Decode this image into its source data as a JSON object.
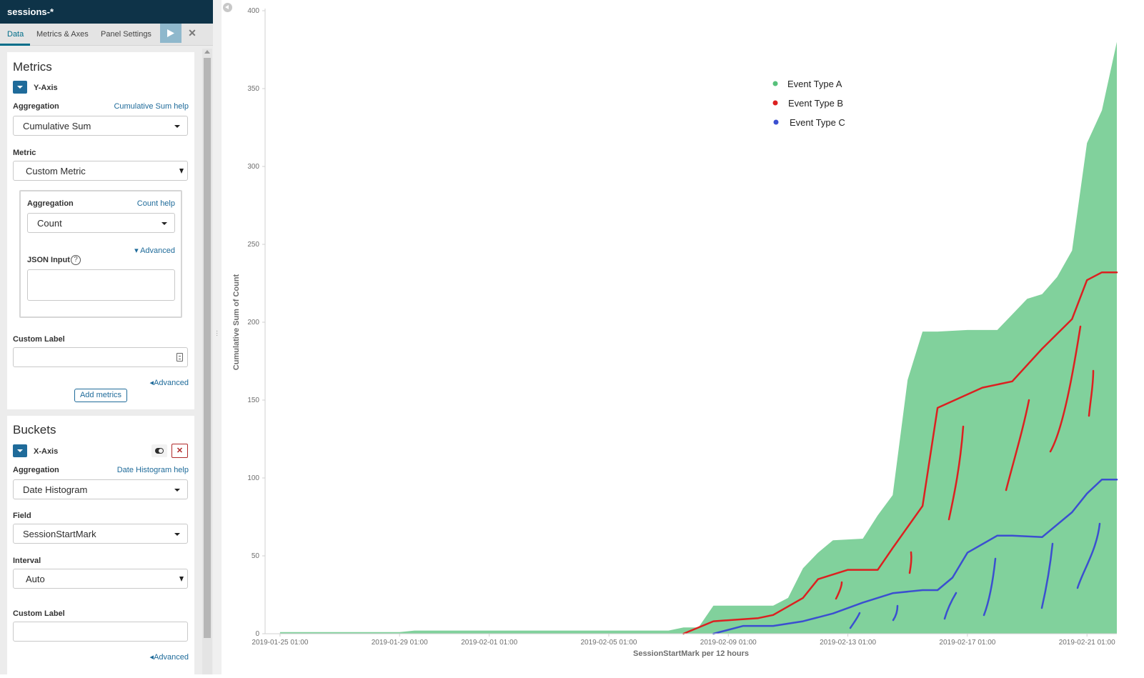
{
  "app": {
    "title": "sessions-*"
  },
  "tabs": [
    {
      "label": "Data",
      "active": true
    },
    {
      "label": "Metrics & Axes",
      "active": false
    },
    {
      "label": "Panel Settings",
      "active": false
    }
  ],
  "toolbar": {
    "apply_icon": "play-icon",
    "discard_icon": "close-icon"
  },
  "metrics": {
    "title": "Metrics",
    "y_axis": {
      "name": "Y-Axis",
      "aggregation_label": "Aggregation",
      "aggregation_help": "Cumulative Sum help",
      "aggregation_value": "Cumulative Sum",
      "metric_label": "Metric",
      "metric_value": "Custom Metric",
      "sub": {
        "aggregation_label": "Aggregation",
        "aggregation_help": "Count help",
        "aggregation_value": "Count",
        "advanced": "▾ Advanced",
        "json_label": "JSON Input",
        "json_value": ""
      },
      "custom_label": "Custom Label",
      "custom_label_value": "",
      "advanced": "◂Advanced"
    },
    "add_button": "Add metrics"
  },
  "buckets": {
    "title": "Buckets",
    "x_axis": {
      "name": "X-Axis",
      "aggregation_label": "Aggregation",
      "aggregation_help": "Date Histogram help",
      "aggregation_value": "Date Histogram",
      "field_label": "Field",
      "field_value": "SessionStartMark",
      "interval_label": "Interval",
      "interval_value": "Auto",
      "custom_label": "Custom Label",
      "custom_label_value": "",
      "advanced": "◂Advanced"
    }
  },
  "chart_data": {
    "type": "area",
    "xlabel": "SessionStartMark per 12 hours",
    "ylabel": "Cumulative Sum of Count",
    "ylim": [
      0,
      400
    ],
    "yticks": [
      0,
      50,
      100,
      150,
      200,
      250,
      300,
      350,
      400
    ],
    "xlim": [
      "2019-01-24 13:00",
      "2019-02-22 01:00"
    ],
    "xticks": [
      "2019-01-25 01:00",
      "2019-01-29 01:00",
      "2019-02-01 01:00",
      "2019-02-05 01:00",
      "2019-02-09 01:00",
      "2019-02-13 01:00",
      "2019-02-17 01:00",
      "2019-02-21 01:00"
    ],
    "grid": false,
    "legend_position": "top-center",
    "series": [
      {
        "name": "Event Type A",
        "color": "#57c17b",
        "x": [
          "2019-01-25 01:00",
          "2019-01-29 01:00",
          "2019-01-29 13:00",
          "2019-02-05 01:00",
          "2019-02-07 01:00",
          "2019-02-07 13:00",
          "2019-02-08 01:00",
          "2019-02-08 13:00",
          "2019-02-09 01:00",
          "2019-02-10 13:00",
          "2019-02-11 01:00",
          "2019-02-11 13:00",
          "2019-02-12 01:00",
          "2019-02-12 13:00",
          "2019-02-13 13:00",
          "2019-02-14 01:00",
          "2019-02-14 13:00",
          "2019-02-15 01:00",
          "2019-02-15 13:00",
          "2019-02-16 01:00",
          "2019-02-17 01:00",
          "2019-02-18 01:00",
          "2019-02-18 13:00",
          "2019-02-19 01:00",
          "2019-02-19 13:00",
          "2019-02-20 01:00",
          "2019-02-20 13:00",
          "2019-02-21 01:00",
          "2019-02-21 13:00",
          "2019-02-22 01:00"
        ],
        "values": [
          1,
          1,
          2,
          2,
          2,
          4,
          4,
          18,
          18,
          18,
          23,
          42,
          52,
          60,
          61,
          76,
          89,
          163,
          194,
          194,
          195,
          195,
          205,
          215,
          218,
          229,
          246,
          315,
          336,
          380
        ]
      },
      {
        "name": "Event Type B",
        "color": "#dc2020",
        "annotation": "hand-drawn red curve and strokes",
        "x": [
          "2019-02-07 13:00",
          "2019-02-08 13:00",
          "2019-02-10 01:00",
          "2019-02-10 13:00",
          "2019-02-11 13:00",
          "2019-02-12 01:00",
          "2019-02-13 01:00",
          "2019-02-14 01:00",
          "2019-02-14 13:00",
          "2019-02-15 13:00",
          "2019-02-16 01:00",
          "2019-02-17 13:00",
          "2019-02-18 13:00",
          "2019-02-19 13:00",
          "2019-02-20 13:00",
          "2019-02-21 01:00",
          "2019-02-21 13:00",
          "2019-02-22 01:00"
        ],
        "values": [
          0,
          8,
          10,
          12,
          23,
          35,
          41,
          41,
          55,
          82,
          145,
          158,
          162,
          183,
          202,
          227,
          232,
          232
        ]
      },
      {
        "name": "Event Type C",
        "color": "#3b4fd0",
        "annotation": "hand-drawn blue curve and strokes",
        "x": [
          "2019-02-08 13:00",
          "2019-02-09 13:00",
          "2019-02-10 13:00",
          "2019-02-11 13:00",
          "2019-02-12 13:00",
          "2019-02-13 13:00",
          "2019-02-14 13:00",
          "2019-02-15 13:00",
          "2019-02-16 01:00",
          "2019-02-16 13:00",
          "2019-02-17 01:00",
          "2019-02-18 01:00",
          "2019-02-18 13:00",
          "2019-02-19 13:00",
          "2019-02-20 13:00",
          "2019-02-21 01:00",
          "2019-02-21 13:00",
          "2019-02-22 01:00"
        ],
        "values": [
          0,
          5,
          5,
          8,
          13,
          20,
          26,
          28,
          28,
          36,
          52,
          63,
          63,
          62,
          78,
          90,
          99,
          99
        ]
      }
    ]
  }
}
